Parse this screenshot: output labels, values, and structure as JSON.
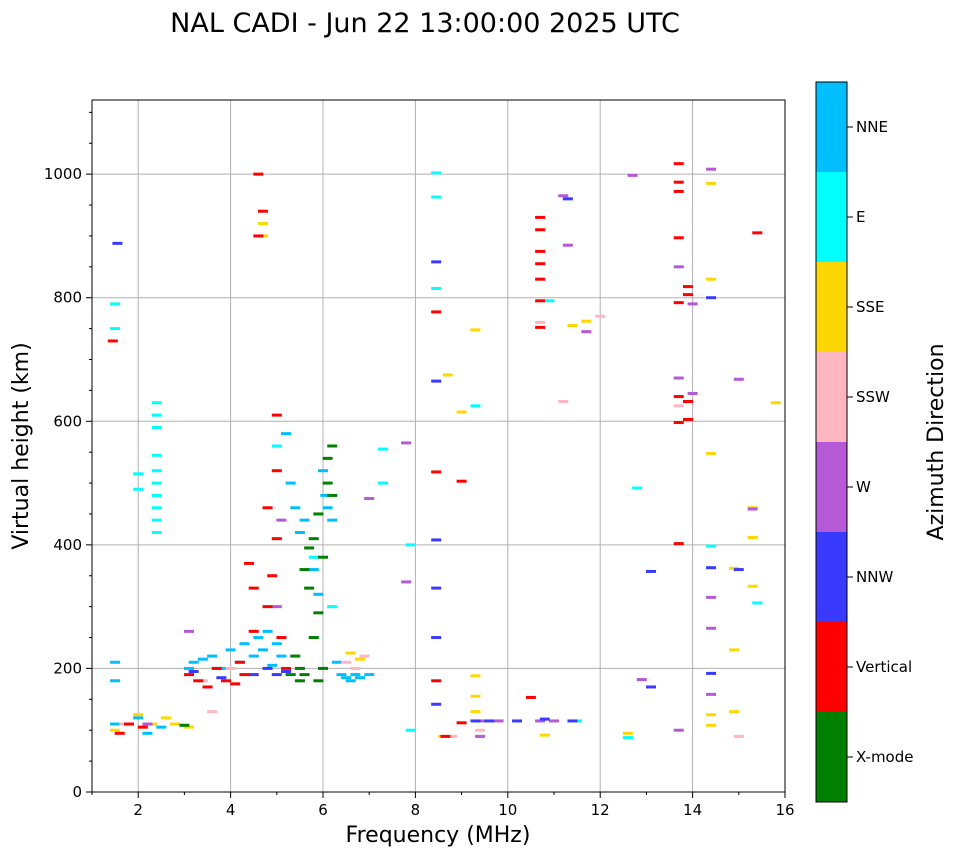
{
  "chart_data": {
    "type": "scatter",
    "title": "NAL CADI - Jun 22 13:00:00 2025 UTC",
    "xlabel": "Frequency (MHz)",
    "ylabel": "Virtual height (km)",
    "xlim": [
      1,
      16
    ],
    "ylim": [
      0,
      1120
    ],
    "xticks": [
      2,
      4,
      6,
      8,
      10,
      12,
      14,
      16
    ],
    "yticks": [
      0,
      200,
      400,
      600,
      800,
      1000
    ],
    "grid": true,
    "colorbar": {
      "label": "Azimuth Direction",
      "categories": [
        {
          "name": "X-mode",
          "color": "#008000"
        },
        {
          "name": "Vertical",
          "color": "#ff0000"
        },
        {
          "name": "NNW",
          "color": "#3a3aff"
        },
        {
          "name": "W",
          "color": "#b659d6"
        },
        {
          "name": "SSW",
          "color": "#ffb6c1"
        },
        {
          "name": "SSE",
          "color": "#ffd700"
        },
        {
          "name": "E",
          "color": "#00ffff"
        },
        {
          "name": "NNE",
          "color": "#00bfff"
        }
      ]
    },
    "series": [
      {
        "name": "NNE",
        "points": [
          [
            1.5,
            110
          ],
          [
            1.5,
            210
          ],
          [
            1.5,
            180
          ],
          [
            2.0,
            120
          ],
          [
            2.2,
            95
          ],
          [
            2.5,
            105
          ],
          [
            3.1,
            200
          ],
          [
            3.2,
            210
          ],
          [
            3.4,
            215
          ],
          [
            3.6,
            220
          ],
          [
            3.8,
            200
          ],
          [
            4.0,
            230
          ],
          [
            4.2,
            210
          ],
          [
            4.3,
            240
          ],
          [
            4.5,
            220
          ],
          [
            4.6,
            250
          ],
          [
            4.7,
            230
          ],
          [
            4.8,
            260
          ],
          [
            4.9,
            205
          ],
          [
            5.0,
            240
          ],
          [
            5.1,
            220
          ],
          [
            5.2,
            580
          ],
          [
            5.3,
            500
          ],
          [
            5.4,
            460
          ],
          [
            5.5,
            420
          ],
          [
            5.6,
            440
          ],
          [
            5.8,
            360
          ],
          [
            5.9,
            320
          ],
          [
            6.0,
            520
          ],
          [
            6.05,
            480
          ],
          [
            6.1,
            460
          ],
          [
            6.2,
            440
          ],
          [
            6.3,
            210
          ],
          [
            6.4,
            190
          ],
          [
            6.5,
            185
          ],
          [
            6.6,
            180
          ],
          [
            6.7,
            190
          ],
          [
            6.8,
            185
          ],
          [
            7.0,
            190
          ]
        ]
      },
      {
        "name": "E",
        "points": [
          [
            1.5,
            750
          ],
          [
            1.5,
            790
          ],
          [
            2.4,
            630
          ],
          [
            2.4,
            610
          ],
          [
            2.4,
            590
          ],
          [
            2.4,
            545
          ],
          [
            2.4,
            520
          ],
          [
            2.4,
            500
          ],
          [
            2.4,
            480
          ],
          [
            2.4,
            460
          ],
          [
            2.4,
            440
          ],
          [
            2.4,
            420
          ],
          [
            2.0,
            515
          ],
          [
            2.0,
            490
          ],
          [
            5.0,
            560
          ],
          [
            5.8,
            380
          ],
          [
            6.2,
            300
          ],
          [
            7.3,
            555
          ],
          [
            7.3,
            500
          ],
          [
            7.9,
            400
          ],
          [
            7.9,
            100
          ],
          [
            8.45,
            1002
          ],
          [
            8.45,
            963
          ],
          [
            8.45,
            815
          ],
          [
            9.3,
            625
          ],
          [
            10.9,
            795
          ],
          [
            11.5,
            115
          ],
          [
            12.6,
            88
          ],
          [
            12.8,
            492
          ],
          [
            14.4,
            398
          ],
          [
            15.4,
            306
          ]
        ]
      },
      {
        "name": "SSE",
        "points": [
          [
            1.5,
            100
          ],
          [
            2.0,
            125
          ],
          [
            2.3,
            110
          ],
          [
            2.6,
            120
          ],
          [
            2.8,
            110
          ],
          [
            3.1,
            105
          ],
          [
            4.7,
            900
          ],
          [
            4.7,
            920
          ],
          [
            6.6,
            225
          ],
          [
            6.8,
            215
          ],
          [
            8.6,
            90
          ],
          [
            8.7,
            675
          ],
          [
            9.0,
            615
          ],
          [
            9.3,
            188
          ],
          [
            9.3,
            155
          ],
          [
            9.3,
            130
          ],
          [
            9.3,
            748
          ],
          [
            10.8,
            92
          ],
          [
            11.4,
            755
          ],
          [
            11.7,
            762
          ],
          [
            12.6,
            95
          ],
          [
            14.4,
            985
          ],
          [
            14.4,
            830
          ],
          [
            14.4,
            548
          ],
          [
            14.4,
            125
          ],
          [
            14.4,
            108
          ],
          [
            14.9,
            362
          ],
          [
            14.9,
            230
          ],
          [
            14.9,
            130
          ],
          [
            15.3,
            460
          ],
          [
            15.3,
            412
          ],
          [
            15.3,
            333
          ],
          [
            15.8,
            630
          ]
        ]
      },
      {
        "name": "SSW",
        "points": [
          [
            1.7,
            110
          ],
          [
            2.1,
            105
          ],
          [
            3.4,
            180
          ],
          [
            3.6,
            130
          ],
          [
            4.0,
            200
          ],
          [
            6.5,
            210
          ],
          [
            6.7,
            200
          ],
          [
            6.9,
            220
          ],
          [
            8.8,
            90
          ],
          [
            9.4,
            100
          ],
          [
            10.7,
            760
          ],
          [
            11.2,
            632
          ],
          [
            12.0,
            770
          ],
          [
            13.7,
            625
          ],
          [
            15.0,
            90
          ]
        ]
      },
      {
        "name": "W",
        "points": [
          [
            2.2,
            110
          ],
          [
            3.1,
            260
          ],
          [
            5.0,
            300
          ],
          [
            5.1,
            440
          ],
          [
            7.0,
            475
          ],
          [
            7.8,
            565
          ],
          [
            7.8,
            340
          ],
          [
            9.4,
            90
          ],
          [
            9.4,
            115
          ],
          [
            9.8,
            115
          ],
          [
            10.7,
            115
          ],
          [
            11.0,
            115
          ],
          [
            11.3,
            885
          ],
          [
            11.2,
            965
          ],
          [
            11.7,
            745
          ],
          [
            12.7,
            998
          ],
          [
            12.9,
            182
          ],
          [
            13.7,
            850
          ],
          [
            13.7,
            670
          ],
          [
            13.7,
            100
          ],
          [
            14.0,
            645
          ],
          [
            14.0,
            790
          ],
          [
            14.4,
            1008
          ],
          [
            14.4,
            315
          ],
          [
            14.4,
            265
          ],
          [
            14.4,
            158
          ],
          [
            15.0,
            668
          ],
          [
            15.3,
            458
          ]
        ]
      },
      {
        "name": "NNW",
        "points": [
          [
            1.55,
            888
          ],
          [
            3.2,
            195
          ],
          [
            3.8,
            185
          ],
          [
            4.5,
            190
          ],
          [
            4.8,
            200
          ],
          [
            5.0,
            190
          ],
          [
            5.2,
            195
          ],
          [
            8.45,
            858
          ],
          [
            8.45,
            665
          ],
          [
            8.45,
            408
          ],
          [
            8.45,
            330
          ],
          [
            8.45,
            250
          ],
          [
            8.45,
            142
          ],
          [
            9.3,
            115
          ],
          [
            9.6,
            115
          ],
          [
            10.2,
            115
          ],
          [
            10.8,
            118
          ],
          [
            11.3,
            960
          ],
          [
            11.4,
            115
          ],
          [
            13.1,
            357
          ],
          [
            13.1,
            170
          ],
          [
            14.4,
            800
          ],
          [
            14.4,
            363
          ],
          [
            14.4,
            192
          ],
          [
            15.0,
            360
          ]
        ]
      },
      {
        "name": "Vertical",
        "points": [
          [
            1.45,
            730
          ],
          [
            1.6,
            95
          ],
          [
            1.8,
            110
          ],
          [
            2.1,
            105
          ],
          [
            3.1,
            190
          ],
          [
            3.3,
            180
          ],
          [
            3.5,
            170
          ],
          [
            3.7,
            200
          ],
          [
            3.9,
            180
          ],
          [
            4.1,
            175
          ],
          [
            4.2,
            210
          ],
          [
            4.3,
            190
          ],
          [
            4.4,
            370
          ],
          [
            4.5,
            330
          ],
          [
            4.5,
            260
          ],
          [
            4.6,
            1000
          ],
          [
            4.6,
            900
          ],
          [
            4.7,
            940
          ],
          [
            4.8,
            460
          ],
          [
            4.8,
            300
          ],
          [
            4.9,
            350
          ],
          [
            5.0,
            410
          ],
          [
            5.1,
            250
          ],
          [
            5.2,
            200
          ],
          [
            5.0,
            610
          ],
          [
            5.0,
            520
          ],
          [
            8.45,
            777
          ],
          [
            8.45,
            518
          ],
          [
            8.45,
            180
          ],
          [
            8.65,
            90
          ],
          [
            9.0,
            503
          ],
          [
            9.0,
            112
          ],
          [
            10.5,
            153
          ],
          [
            10.7,
            930
          ],
          [
            10.7,
            910
          ],
          [
            10.7,
            875
          ],
          [
            10.7,
            855
          ],
          [
            10.7,
            830
          ],
          [
            10.7,
            795
          ],
          [
            10.7,
            752
          ],
          [
            13.7,
            1017
          ],
          [
            13.7,
            987
          ],
          [
            13.7,
            972
          ],
          [
            13.7,
            897
          ],
          [
            13.7,
            792
          ],
          [
            13.7,
            640
          ],
          [
            13.7,
            598
          ],
          [
            13.7,
            402
          ],
          [
            13.9,
            818
          ],
          [
            13.9,
            805
          ],
          [
            13.9,
            632
          ],
          [
            13.9,
            603
          ],
          [
            15.4,
            905
          ]
        ]
      },
      {
        "name": "X-mode",
        "points": [
          [
            3.0,
            108
          ],
          [
            5.3,
            190
          ],
          [
            5.4,
            220
          ],
          [
            5.5,
            200
          ],
          [
            5.5,
            180
          ],
          [
            5.6,
            190
          ],
          [
            5.7,
            330
          ],
          [
            5.7,
            395
          ],
          [
            5.8,
            410
          ],
          [
            5.9,
            450
          ],
          [
            5.9,
            290
          ],
          [
            6.0,
            380
          ],
          [
            6.1,
            540
          ],
          [
            6.1,
            500
          ],
          [
            6.2,
            480
          ],
          [
            6.2,
            560
          ],
          [
            5.8,
            250
          ],
          [
            5.6,
            360
          ],
          [
            5.9,
            180
          ],
          [
            6.0,
            200
          ]
        ]
      }
    ]
  }
}
